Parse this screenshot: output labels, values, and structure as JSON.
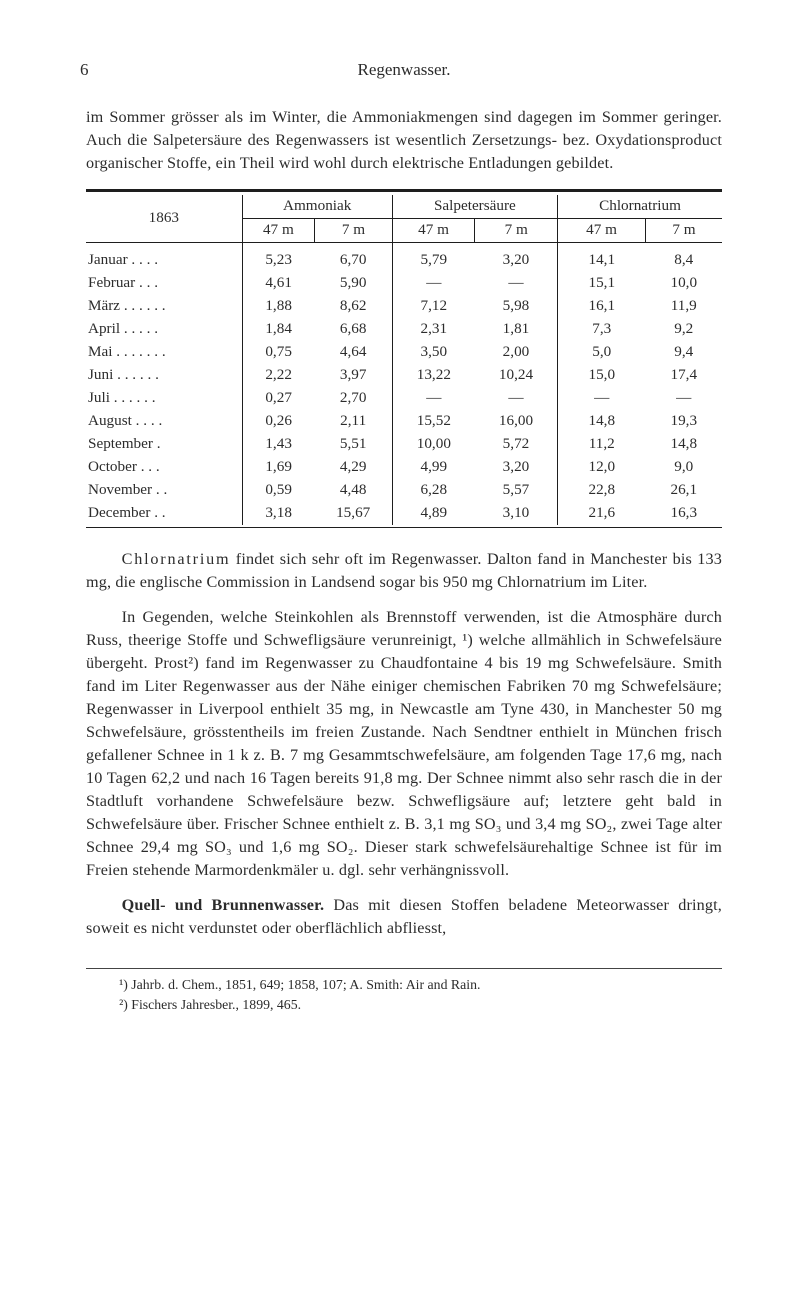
{
  "page_no": "6",
  "running_title": "Regenwasser.",
  "para1": "im Sommer grösser als im Winter, die Ammoniakmengen sind dagegen im Sommer geringer. Auch die Salpetersäure des Regenwassers ist wesentlich Zersetzungs- bez. Oxydationsproduct organischer Stoffe, ein Theil wird wohl durch elektrische Entladungen gebildet.",
  "tbl": {
    "year": "1863",
    "groups": [
      "Ammoniak",
      "Salpetersäure",
      "Chlornatrium"
    ],
    "subcols": [
      "47 m",
      "7 m"
    ],
    "rows": [
      [
        "Januar",
        "5,23",
        "6,70",
        "5,79",
        "3,20",
        "14,1",
        "8,4"
      ],
      [
        "Februar",
        "4,61",
        "5,90",
        "—",
        "—",
        "15,1",
        "10,0"
      ],
      [
        "März",
        "1,88",
        "8,62",
        "7,12",
        "5,98",
        "16,1",
        "11,9"
      ],
      [
        "April",
        "1,84",
        "6,68",
        "2,31",
        "1,81",
        "7,3",
        "9,2"
      ],
      [
        "Mai",
        "0,75",
        "4,64",
        "3,50",
        "2,00",
        "5,0",
        "9,4"
      ],
      [
        "Juni",
        "2,22",
        "3,97",
        "13,22",
        "10,24",
        "15,0",
        "17,4"
      ],
      [
        "Juli",
        "0,27",
        "2,70",
        "—",
        "—",
        "—",
        "—"
      ],
      [
        "August",
        "0,26",
        "2,11",
        "15,52",
        "16,00",
        "14,8",
        "19,3"
      ],
      [
        "September",
        "1,43",
        "5,51",
        "10,00",
        "5,72",
        "11,2",
        "14,8"
      ],
      [
        "October",
        "1,69",
        "4,29",
        "4,99",
        "3,20",
        "12,0",
        "9,0"
      ],
      [
        "November",
        "0,59",
        "4,48",
        "6,28",
        "5,57",
        "22,8",
        "26,1"
      ],
      [
        "December",
        "3,18",
        "15,67",
        "4,89",
        "3,10",
        "21,6",
        "16,3"
      ]
    ]
  },
  "para2_lead": "Chlornatrium",
  "para2_rest": " findet sich sehr oft im Regenwasser. Dalton fand in Manchester bis 133 mg, die englische Commission in Landsend sogar bis 950 mg Chlornatrium im Liter.",
  "para3": "In Gegenden, welche Steinkohlen als Brennstoff verwenden, ist die Atmosphäre durch Russ, theerige Stoffe und Schwefligsäure verunreinigt, ¹) welche allmählich in Schwefelsäure übergeht. Prost²) fand im Regenwasser zu Chaudfontaine 4 bis 19 mg Schwefelsäure. Smith fand im Liter Regenwasser aus der Nähe einiger chemischen Fabriken 70 mg Schwefelsäure; Regenwasser in Liverpool enthielt 35 mg, in Newcastle am Tyne 430, in Manchester 50 mg Schwefelsäure, grösstentheils im freien Zustande. Nach Sendtner enthielt in München frisch gefallener Schnee in 1 k z. B. 7 mg Gesammtschwefelsäure, am folgenden Tage 17,6 mg, nach 10 Tagen 62,2 und nach 16 Tagen bereits 91,8 mg. Der Schnee nimmt also sehr rasch die in der Stadtluft vorhandene Schwefelsäure bezw. Schwefligsäure auf; letztere geht bald in Schwefelsäure über. Frischer Schnee enthielt z. B. 3,1 mg SO₃ und 3,4 mg SO₂, zwei Tage alter Schnee 29,4 mg SO₃ und 1,6 mg SO₂. Dieser stark schwefelsäurehaltige Schnee ist für im Freien stehende Marmordenkmäler u. dgl. sehr verhängnissvoll.",
  "para4_lead": "Quell- und Brunnenwasser.",
  "para4_rest": " Das mit diesen Stoffen beladene Meteorwasser dringt, soweit es nicht verdunstet oder oberflächlich abfliesst,",
  "fn1": "¹) Jahrb. d. Chem., 1851, 649; 1858, 107; A. Smith: Air and Rain.",
  "fn2": "²) Fischers Jahresber., 1899, 465."
}
